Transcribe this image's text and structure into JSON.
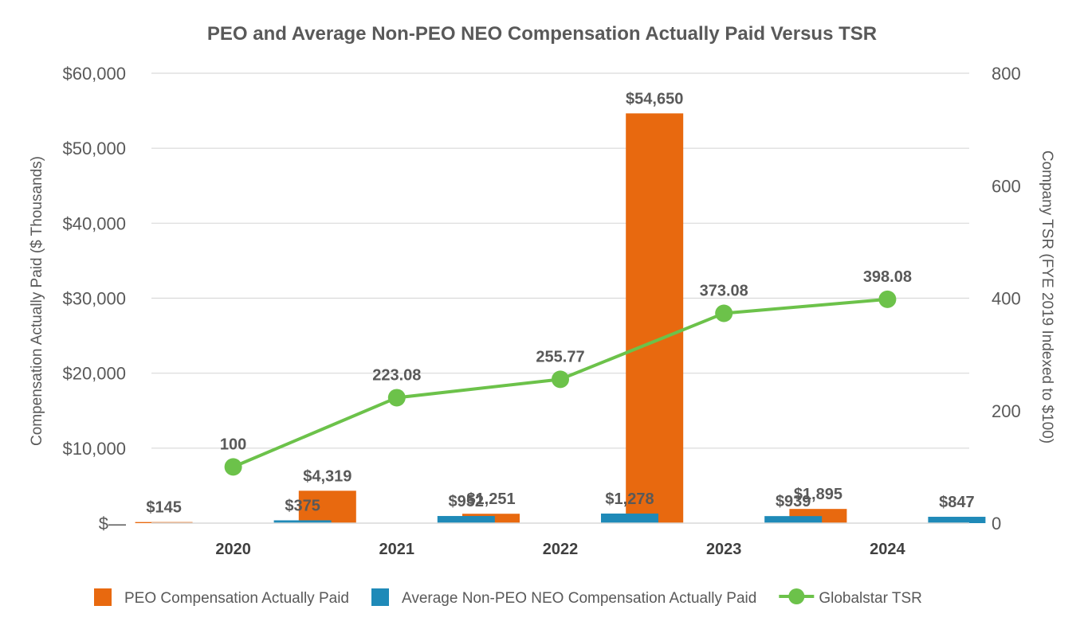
{
  "chart_data": {
    "type": "bar",
    "title": "PEO and Average Non-PEO NEO Compensation Actually Paid Versus TSR",
    "categories": [
      "2020",
      "2021",
      "2022",
      "2023",
      "2024"
    ],
    "ylabel": "Compensation Actually Paid ($ Thousands)",
    "y2label": "Company TSR (FYE 2019 Indexed to $100)",
    "ylim": [
      0,
      60000
    ],
    "y2lim": [
      0,
      800
    ],
    "yticks": [
      0,
      10000,
      20000,
      30000,
      40000,
      50000,
      60000
    ],
    "ytick_labels": [
      "$—",
      "$10,000",
      "$20,000",
      "$30,000",
      "$40,000",
      "$50,000",
      "$60,000"
    ],
    "y2ticks": [
      0,
      200,
      400,
      600,
      800
    ],
    "y2tick_labels": [
      "0",
      "200",
      "400",
      "600",
      "800"
    ],
    "grid": true,
    "legend_position": "bottom",
    "series": [
      {
        "name": "PEO Compensation Actually Paid",
        "type": "bar",
        "axis": "left",
        "color": "#E8690F",
        "values": [
          145,
          4319,
          1251,
          54650,
          1895
        ],
        "labels": [
          "$145",
          "$4,319",
          "$1,251",
          "$54,650",
          "$1,895"
        ]
      },
      {
        "name": "Average Non-PEO NEO Compensation Actually Paid",
        "type": "bar",
        "axis": "left",
        "color": "#1F8AB8",
        "values": [
          375,
          952,
          1278,
          939,
          847
        ],
        "labels": [
          "$375",
          "$952",
          "$1,278",
          "$939",
          "$847"
        ]
      },
      {
        "name": "Globalstar TSR",
        "type": "line",
        "axis": "right",
        "color": "#6CC24A",
        "values": [
          100,
          223.08,
          255.77,
          373.08,
          398.08
        ],
        "labels": [
          "100",
          "223.08",
          "255.77",
          "373.08",
          "398.08"
        ]
      }
    ]
  }
}
